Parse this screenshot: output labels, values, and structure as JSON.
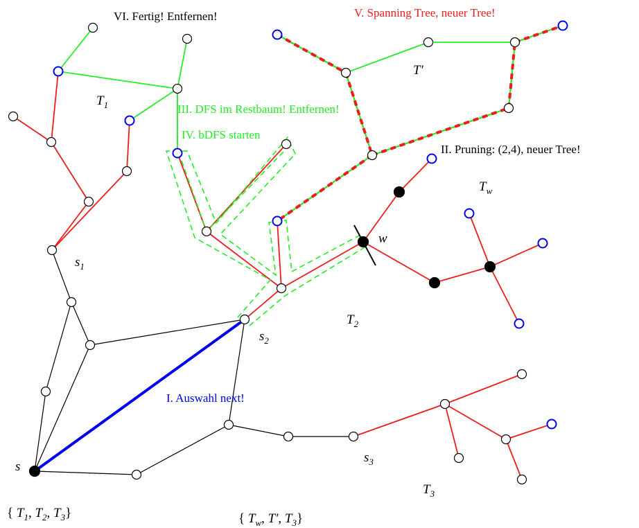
{
  "colors": {
    "black": "#000000",
    "red": "#ee1c1c",
    "green": "#22ee22",
    "blue": "#0000ee",
    "node_fill": "#ffffff",
    "node_filled": "#000000"
  },
  "steps": {
    "step1": "I. Auswahl next!",
    "step2": "II. Pruning: (2,4), neuer Tree!",
    "step3": "III. DFS im Restbaum! Entfernen!",
    "step4": "IV. bDFS starten",
    "step5": "V. Spanning Tree, neuer Tree!",
    "step6": "VI. Fertig! Entfernen!"
  },
  "labels": {
    "T1": {
      "base": "T",
      "sub": "1"
    },
    "T2": {
      "base": "T",
      "sub": "2"
    },
    "T3": {
      "base": "T",
      "sub": "3"
    },
    "Tw": {
      "base": "T",
      "sub": "w"
    },
    "Tprime": "T′",
    "s": "s",
    "s1": {
      "base": "s",
      "sub": "1"
    },
    "s2": {
      "base": "s",
      "sub": "2"
    },
    "s3": {
      "base": "s",
      "sub": "3"
    },
    "w": "w"
  },
  "sets": {
    "left_open": "{",
    "left_close": "}",
    "left_items": [
      {
        "base": "T",
        "sub": "1"
      },
      {
        "base": "T",
        "sub": "2"
      },
      {
        "base": "T",
        "sub": "3"
      }
    ],
    "right_items": [
      {
        "base": "T",
        "sub": "w"
      },
      {
        "base": "T′",
        "sub": ""
      },
      {
        "base": "T",
        "sub": "3"
      }
    ]
  }
}
